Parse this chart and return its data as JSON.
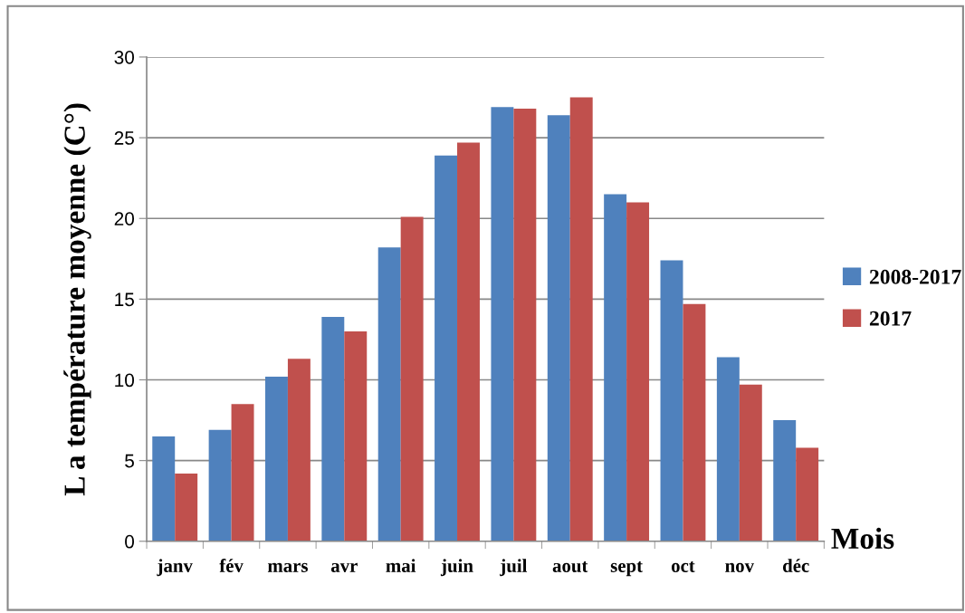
{
  "chart_data": {
    "type": "bar",
    "xlabel": "Mois",
    "ylabel": "L a température moyenne (C°)",
    "categories": [
      "janv",
      "fév",
      "mars",
      "avr",
      "mai",
      "juin",
      "juil",
      "aout",
      "sept",
      "oct",
      "nov",
      "déc"
    ],
    "series": [
      {
        "name": "2008-2017",
        "color": "#4f81bd",
        "values": [
          6.5,
          6.9,
          10.2,
          13.9,
          18.2,
          23.9,
          26.9,
          26.4,
          21.5,
          17.4,
          11.4,
          7.5
        ]
      },
      {
        "name": "2017",
        "color": "#c0504d",
        "values": [
          4.2,
          8.5,
          11.3,
          13.0,
          20.1,
          24.7,
          26.8,
          27.5,
          21.0,
          14.7,
          9.7,
          5.8
        ]
      }
    ],
    "ylim": [
      0,
      30
    ],
    "yticks": [
      0,
      5,
      10,
      15,
      20,
      25,
      30
    ],
    "grid": "y",
    "legend": "right"
  }
}
